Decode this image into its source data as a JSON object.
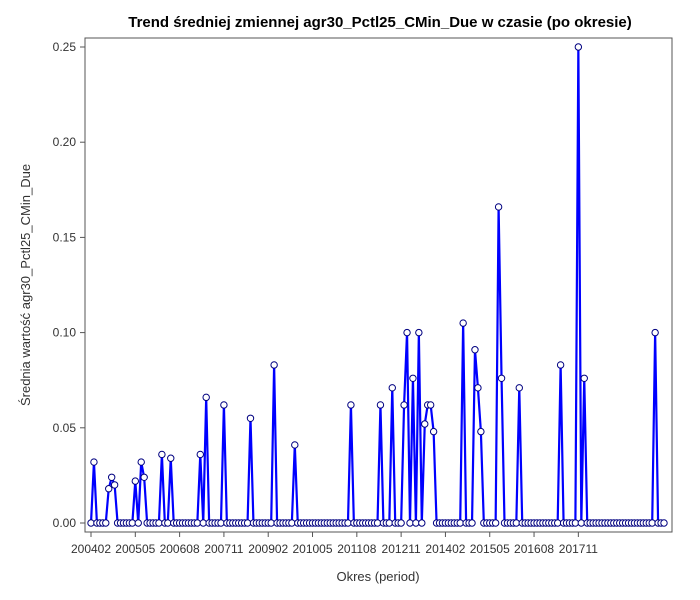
{
  "chart_data": {
    "type": "line",
    "title": "Trend średniej zmiennej agr30_Pctl25_CMin_Due w czasie (po okresie)",
    "xlabel": "Okres (period)",
    "ylabel": "Średnia wartość agr30_Pctl25_CMin_Due",
    "ylim": [
      0,
      0.25
    ],
    "y_ticks": [
      "0.00",
      "0.05",
      "0.10",
      "0.15",
      "0.20",
      "0.25"
    ],
    "x_tick_labels": [
      "200402",
      "200505",
      "200608",
      "200711",
      "200902",
      "201005",
      "201108",
      "201211",
      "201402",
      "201505",
      "201608",
      "201711"
    ],
    "start_period": "200402",
    "grid": false,
    "series": [
      {
        "color": "#0000ff",
        "values": [
          0,
          0.032,
          0,
          0,
          0,
          0,
          0.018,
          0.024,
          0.02,
          0,
          0,
          0,
          0,
          0,
          0,
          0.022,
          0,
          0.032,
          0.024,
          0,
          0,
          0,
          0,
          0,
          0.036,
          0,
          0,
          0.034,
          0,
          0,
          0,
          0,
          0,
          0,
          0,
          0,
          0,
          0.036,
          0,
          0.066,
          0,
          0,
          0,
          0,
          0,
          0.062,
          0,
          0,
          0,
          0,
          0,
          0,
          0,
          0,
          0.055,
          0,
          0,
          0,
          0,
          0,
          0,
          0,
          0.083,
          0,
          0,
          0,
          0,
          0,
          0,
          0.041,
          0,
          0,
          0,
          0,
          0,
          0,
          0,
          0,
          0,
          0,
          0,
          0,
          0,
          0,
          0,
          0,
          0,
          0,
          0.062,
          0,
          0,
          0,
          0,
          0,
          0,
          0,
          0,
          0,
          0.062,
          0,
          0,
          0,
          0.071,
          0,
          0,
          0,
          0.062,
          0.1,
          0,
          0.076,
          0,
          0.1,
          0,
          0.052,
          0.062,
          0.062,
          0.048,
          0,
          0,
          0,
          0,
          0,
          0,
          0,
          0,
          0,
          0.105,
          0,
          0,
          0,
          0.091,
          0.071,
          0.048,
          0,
          0,
          0,
          0,
          0,
          0.166,
          0.076,
          0,
          0,
          0,
          0,
          0,
          0.071,
          0,
          0,
          0,
          0,
          0,
          0,
          0,
          0,
          0,
          0,
          0,
          0,
          0,
          0.083,
          0,
          0,
          0,
          0,
          0,
          0.25,
          0,
          0.076,
          0,
          0,
          0,
          0,
          0,
          0,
          0,
          0,
          0,
          0,
          0,
          0,
          0,
          0,
          0,
          0,
          0,
          0,
          0,
          0,
          0,
          0,
          0,
          0.1,
          0,
          0,
          0
        ]
      }
    ]
  }
}
